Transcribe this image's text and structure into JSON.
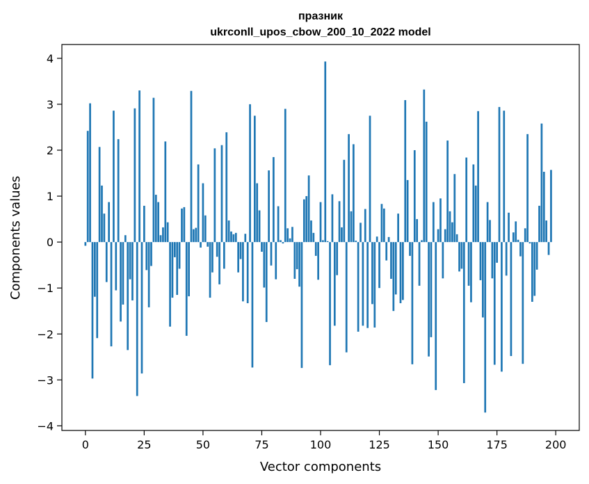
{
  "chart_data": {
    "type": "bar",
    "title": "празник",
    "subtitle": "ukrconll_upos_cbow_200_10_2022 model",
    "xlabel": "Vector components",
    "ylabel": "Components values",
    "xlim": [
      -10,
      210
    ],
    "ylim": [
      -4.1,
      4.3
    ],
    "xticks": [
      0,
      25,
      50,
      75,
      100,
      125,
      150,
      175,
      200
    ],
    "yticks": [
      -4,
      -3,
      -2,
      -1,
      0,
      1,
      2,
      3,
      4
    ],
    "bar_color": "#1f77b4",
    "grid": false,
    "values": [
      -0.08,
      2.42,
      3.02,
      -2.97,
      -1.19,
      -2.09,
      2.07,
      1.23,
      0.62,
      -0.87,
      0.87,
      -2.27,
      2.86,
      -1.05,
      2.24,
      -1.73,
      -1.36,
      0.15,
      -2.35,
      -0.81,
      -1.27,
      2.91,
      -3.35,
      3.3,
      -2.86,
      0.79,
      -0.61,
      -1.42,
      -0.52,
      3.14,
      1.03,
      0.87,
      0.15,
      0.32,
      2.19,
      0.43,
      -1.84,
      -1.21,
      -0.33,
      -1.15,
      -0.58,
      0.73,
      0.76,
      -2.04,
      -1.18,
      3.29,
      0.28,
      0.31,
      1.69,
      -0.12,
      1.28,
      0.58,
      -0.1,
      -1.21,
      -0.66,
      2.04,
      -0.32,
      -0.92,
      2.11,
      -0.58,
      2.39,
      0.47,
      0.23,
      0.17,
      0.2,
      -0.66,
      -0.37,
      -1.29,
      0.18,
      -1.33,
      3.0,
      -2.73,
      2.75,
      1.28,
      0.69,
      -0.21,
      -0.99,
      -1.74,
      1.56,
      -0.51,
      1.85,
      -0.81,
      0.78,
      0.04,
      -0.03,
      2.9,
      0.3,
      0.08,
      0.33,
      -0.8,
      -0.59,
      -0.97,
      -2.74,
      0.93,
      1.0,
      1.45,
      0.47,
      0.2,
      -0.3,
      -0.82,
      0.87,
      0.04,
      3.93,
      0.02,
      -2.68,
      1.04,
      -1.82,
      -0.72,
      0.89,
      0.32,
      1.79,
      -2.4,
      2.35,
      0.67,
      2.13,
      0.03,
      -1.95,
      0.42,
      -1.82,
      0.72,
      -1.87,
      2.75,
      -1.35,
      -1.86,
      0.12,
      -1.0,
      0.83,
      0.73,
      -0.4,
      0.11,
      -0.8,
      -1.5,
      -1.14,
      0.62,
      -1.33,
      -1.26,
      3.09,
      1.35,
      -0.3,
      -2.66,
      2.0,
      0.5,
      -0.95,
      0.04,
      3.32,
      2.62,
      -2.49,
      -2.07,
      0.87,
      -3.22,
      0.28,
      0.95,
      -0.79,
      0.28,
      2.21,
      0.67,
      0.43,
      1.48,
      0.17,
      -0.64,
      -0.58,
      -3.07,
      1.84,
      -0.95,
      -1.31,
      1.69,
      1.23,
      2.85,
      -0.83,
      -1.64,
      -3.71,
      0.87,
      0.48,
      -0.79,
      -2.67,
      -0.45,
      2.94,
      -2.82,
      2.86,
      -0.73,
      0.64,
      -2.48,
      0.21,
      0.45,
      0.05,
      -0.31,
      -2.65,
      0.3,
      2.35,
      -0.03,
      -1.3,
      -1.17,
      -0.6,
      0.79,
      2.58,
      1.53,
      0.47,
      -0.28,
      1.57
    ]
  }
}
